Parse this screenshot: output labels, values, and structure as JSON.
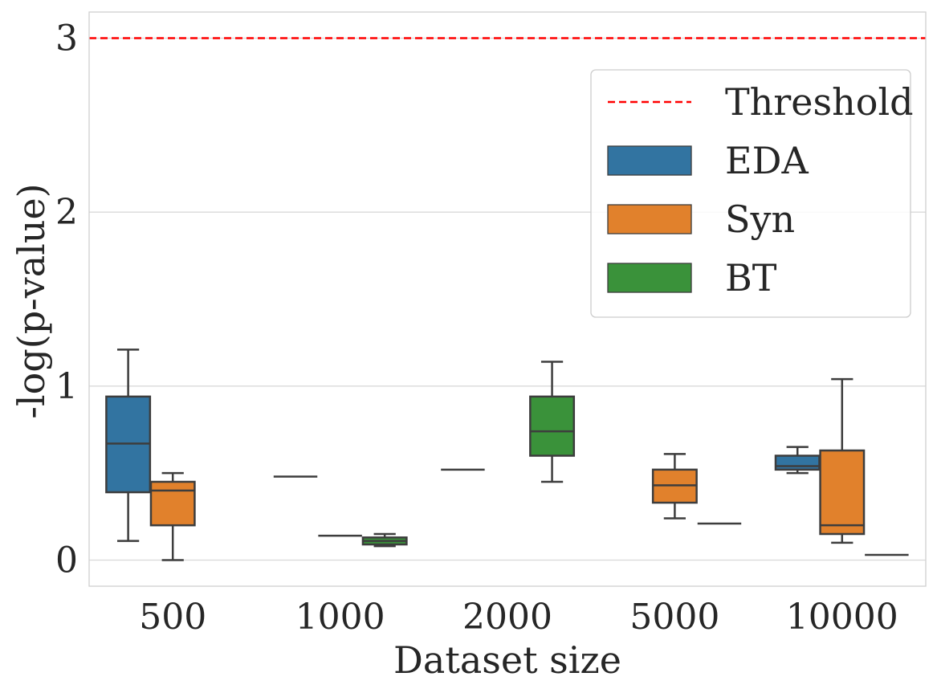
{
  "chart_data": {
    "type": "box",
    "xlabel": "Dataset size",
    "ylabel": "-log(p-value)",
    "categories": [
      "500",
      "1000",
      "2000",
      "5000",
      "10000"
    ],
    "ylim": [
      -0.15,
      3.15
    ],
    "yticks": [
      0,
      1,
      2,
      3
    ],
    "ytick_labels": [
      "0",
      "1",
      "2",
      "3"
    ],
    "grid": true,
    "threshold": {
      "label": "Threshold",
      "value": 3.0,
      "color": "#ff0000",
      "style": "dashed"
    },
    "series": [
      {
        "name": "EDA",
        "color": "#3274a1",
        "boxes": [
          {
            "category": "500",
            "whisker_low": 0.11,
            "q1": 0.39,
            "median": 0.67,
            "q3": 0.94,
            "whisker_high": 1.21
          },
          {
            "category": "1000",
            "whisker_low": 0.48,
            "q1": 0.48,
            "median": 0.48,
            "q3": 0.48,
            "whisker_high": 0.48
          },
          {
            "category": "2000",
            "whisker_low": 0.52,
            "q1": 0.52,
            "median": 0.52,
            "q3": 0.52,
            "whisker_high": 0.52
          },
          null,
          {
            "category": "10000",
            "whisker_low": 0.5,
            "q1": 0.52,
            "median": 0.54,
            "q3": 0.6,
            "whisker_high": 0.65
          }
        ]
      },
      {
        "name": "Syn",
        "color": "#e1812c",
        "boxes": [
          {
            "category": "500",
            "whisker_low": 0.0,
            "q1": 0.2,
            "median": 0.4,
            "q3": 0.45,
            "whisker_high": 0.5
          },
          {
            "category": "1000",
            "whisker_low": 0.14,
            "q1": 0.14,
            "median": 0.14,
            "q3": 0.14,
            "whisker_high": 0.14
          },
          null,
          {
            "category": "5000",
            "whisker_low": 0.24,
            "q1": 0.33,
            "median": 0.43,
            "q3": 0.52,
            "whisker_high": 0.61
          },
          {
            "category": "10000",
            "whisker_low": 0.1,
            "q1": 0.15,
            "median": 0.2,
            "q3": 0.63,
            "whisker_high": 1.04
          }
        ]
      },
      {
        "name": "BT",
        "color": "#3a923a",
        "boxes": [
          null,
          {
            "category": "1000",
            "whisker_low": 0.08,
            "q1": 0.09,
            "median": 0.11,
            "q3": 0.13,
            "whisker_high": 0.15
          },
          {
            "category": "2000",
            "whisker_low": 0.45,
            "q1": 0.6,
            "median": 0.74,
            "q3": 0.94,
            "whisker_high": 1.14
          },
          {
            "category": "5000",
            "whisker_low": 0.21,
            "q1": 0.21,
            "median": 0.21,
            "q3": 0.21,
            "whisker_high": 0.21
          },
          {
            "category": "10000",
            "whisker_low": 0.03,
            "q1": 0.03,
            "median": 0.03,
            "q3": 0.03,
            "whisker_high": 0.03
          }
        ]
      }
    ],
    "legend": {
      "placement": "upper-right",
      "entries": [
        "Threshold",
        "EDA",
        "Syn",
        "BT"
      ]
    }
  }
}
